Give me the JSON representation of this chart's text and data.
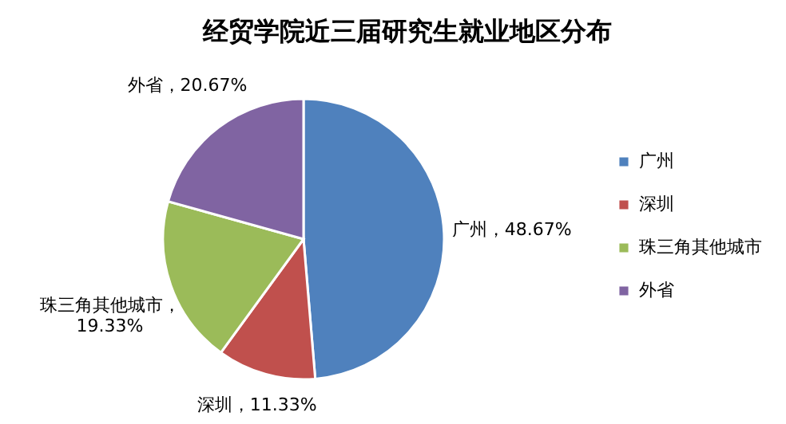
{
  "chart_data": {
    "type": "pie",
    "title": "经贸学院近三届研究生就业地区分布",
    "categories": [
      "广州",
      "深圳",
      "珠三角其他城市",
      "外省"
    ],
    "values": [
      48.67,
      11.33,
      19.33,
      20.67
    ],
    "colors": [
      "#4f81bd",
      "#c0504d",
      "#9bbb59",
      "#8064a2"
    ],
    "value_labels": [
      "广州，48.67%",
      "深圳，11.33%",
      "珠三角其他城市，19.33%",
      "外省，20.67%"
    ],
    "legend": "right"
  }
}
